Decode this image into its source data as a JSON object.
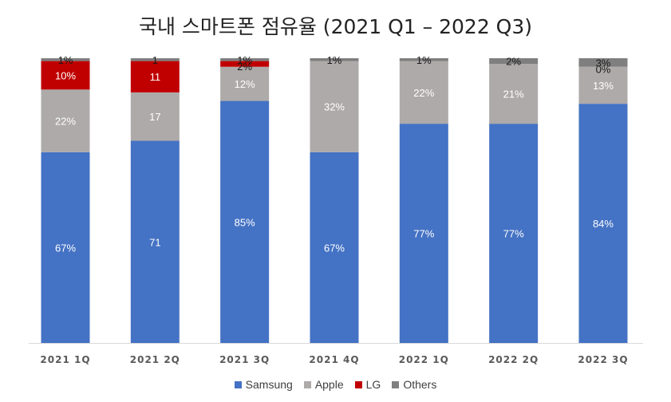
{
  "chart_data": {
    "type": "bar",
    "stacked": true,
    "title": "국내 스마트폰 점유율 (2021 Q1 – 2022 Q3)",
    "categories": [
      "2021 1Q",
      "2021 2Q",
      "2021 3Q",
      "2021 4Q",
      "2022 1Q",
      "2022 2Q",
      "2022 3Q"
    ],
    "ylim": [
      0,
      100
    ],
    "grid": false,
    "legend_position": "bottom",
    "series": [
      {
        "name": "Samsung",
        "color": "#4472C4",
        "values": [
          67,
          71,
          85,
          67,
          77,
          77,
          84
        ],
        "labels": [
          "67%",
          "71",
          "85%",
          "67%",
          "77%",
          "77%",
          "84%"
        ]
      },
      {
        "name": "Apple",
        "color": "#ADAAA9",
        "values": [
          22,
          17,
          12,
          32,
          22,
          21,
          13
        ],
        "labels": [
          "22%",
          "17",
          "12%",
          "32%",
          "22%",
          "21%",
          "13%"
        ]
      },
      {
        "name": "LG",
        "color": "#C00000",
        "values": [
          10,
          11,
          2,
          0,
          0,
          0,
          0
        ],
        "labels": [
          "10%",
          "11",
          "2%",
          "",
          "",
          "",
          "0%"
        ]
      },
      {
        "name": "Others",
        "color": "#7F7F7F",
        "values": [
          1,
          1,
          1,
          1,
          1,
          2,
          3
        ],
        "labels": [
          "1%",
          "1",
          "1%",
          "1%",
          "1%",
          "2%",
          "3%"
        ]
      }
    ]
  }
}
